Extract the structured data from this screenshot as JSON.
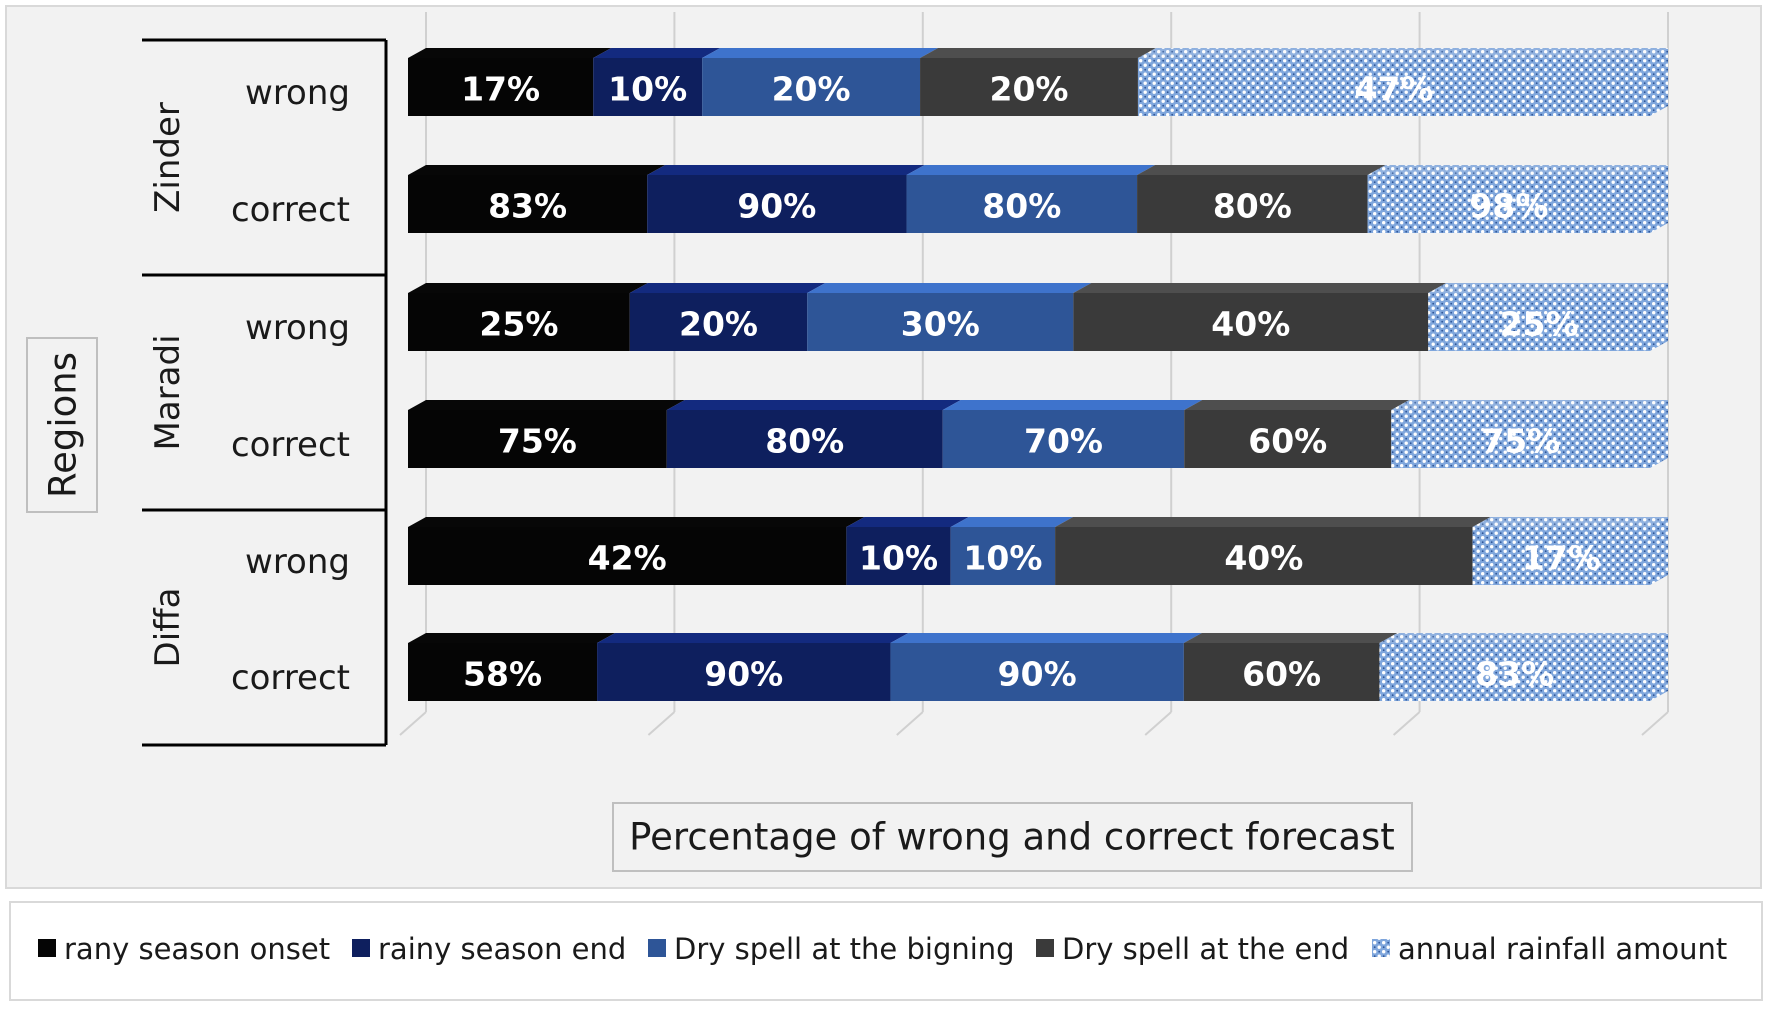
{
  "chart_data": {
    "type": "bar",
    "orientation": "horizontal",
    "stacked": "100%",
    "title": "",
    "xlabel": "Percentage of wrong and correct forecast",
    "ylabel": "Regions",
    "groups": [
      {
        "region": "Zinder",
        "rows": [
          "wrong",
          "correct"
        ]
      },
      {
        "region": "Maradi",
        "rows": [
          "wrong",
          "correct"
        ]
      },
      {
        "region": "Diffa",
        "rows": [
          "wrong",
          "correct"
        ]
      }
    ],
    "categories": [
      "Zinder wrong",
      "Zinder correct",
      "Maradi wrong",
      "Maradi correct",
      "Diffa wrong",
      "Diffa correct"
    ],
    "series": [
      {
        "name": "rany season onset",
        "color": "#050505",
        "pattern": "solid",
        "values": [
          17,
          83,
          25,
          75,
          42,
          58
        ],
        "labels": [
          "17%",
          "83%",
          "25%",
          "75%",
          "42%",
          "58%"
        ]
      },
      {
        "name": "rainy season end",
        "color": "#0e1f5e",
        "pattern": "solid",
        "values": [
          10,
          90,
          20,
          80,
          10,
          90
        ],
        "labels": [
          "10%",
          "90%",
          "20%",
          "80%",
          "10%",
          "90%"
        ]
      },
      {
        "name": "Dry spell at the bigning",
        "color": "#2e5597",
        "pattern": "solid",
        "values": [
          20,
          80,
          30,
          70,
          10,
          90
        ],
        "labels": [
          "20%",
          "80%",
          "30%",
          "70%",
          "10%",
          "90%"
        ]
      },
      {
        "name": "Dry spell at the end",
        "color": "#3a3a3a",
        "pattern": "solid",
        "values": [
          20,
          80,
          40,
          60,
          40,
          60
        ],
        "labels": [
          "20%",
          "80%",
          "40%",
          "60%",
          "40%",
          "60%"
        ]
      },
      {
        "name": "annual rainfall amount",
        "color": "#7fa6dc",
        "pattern": "dots",
        "values": [
          47,
          98,
          25,
          75,
          17,
          83
        ],
        "labels": [
          "47%",
          "98%",
          "25%",
          "75%",
          "17%",
          "83%"
        ]
      }
    ],
    "grid": true,
    "legend_position": "bottom"
  }
}
